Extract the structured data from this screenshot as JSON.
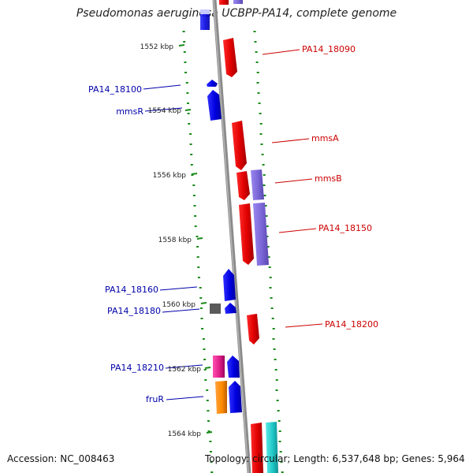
{
  "title": "Pseudomonas aeruginosa UCBPP-PA14, complete genome",
  "footer": {
    "accession": "Accession: NC_008463",
    "topology": "Topology: circular; Length: 6,537,648 bp; Genes: 5,964"
  },
  "ticks": [
    "1552 kbp",
    "1554 kbp",
    "1556 kbp",
    "1558 kbp",
    "1560 kbp",
    "1562 kbp",
    "1564 kbp"
  ],
  "genes": [
    {
      "name": "PA14_18090",
      "strand": "forward",
      "color": "#ff0000"
    },
    {
      "name": "PA14_18100",
      "strand": "reverse",
      "color": "#0000ff"
    },
    {
      "name": "mmsR",
      "strand": "reverse",
      "color": "#0000ff"
    },
    {
      "name": "mmsA",
      "strand": "forward",
      "color": "#ff0000"
    },
    {
      "name": "mmsB",
      "strand": "forward",
      "color": "#ff0000"
    },
    {
      "name": "PA14_18150",
      "strand": "forward",
      "color": "#ff0000"
    },
    {
      "name": "PA14_18160",
      "strand": "reverse",
      "color": "#0000ff"
    },
    {
      "name": "PA14_18180",
      "strand": "reverse",
      "color": "#0000ff"
    },
    {
      "name": "PA14_18200",
      "strand": "forward",
      "color": "#ff0000"
    },
    {
      "name": "PA14_18210",
      "strand": "reverse",
      "color": "#0000ff"
    },
    {
      "name": "fruR",
      "strand": "reverse",
      "color": "#ff8c00"
    }
  ],
  "colors": {
    "forward_label": "#cc0000",
    "reverse_label": "#0000aa",
    "backbone": "#888888",
    "gc_dash": "#1a8a1a",
    "purple": "#7a66d6",
    "magenta": "#e0208a",
    "cyan": "#20c8c8",
    "gray": "#555555"
  }
}
